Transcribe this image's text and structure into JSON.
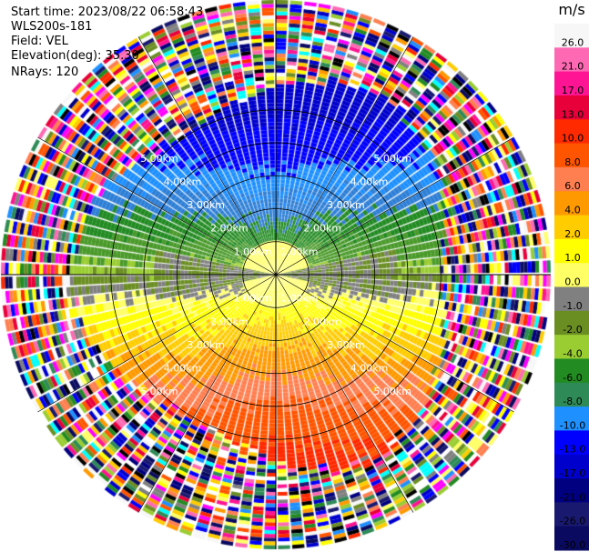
{
  "header": {
    "start_time": "Start time: 2023/08/22 06:58:43",
    "instrument": "WLS200s-181",
    "field": "Field: VEL",
    "elevation": "Elevation(deg): 35.30",
    "nrays": "NRays: 120"
  },
  "chart_data": {
    "type": "heatmap",
    "projection": "polar-ppi",
    "field": "VEL",
    "units": "m/s",
    "n_rays": 120,
    "ring_labels": [
      "1.00km",
      "2.00km",
      "3.00km",
      "4.00km",
      "5.00km"
    ],
    "ring_ranges_km": [
      1,
      2,
      3,
      4,
      5
    ],
    "max_range_km": 5.0,
    "clean_data_range_km": 3.3,
    "colorbar": {
      "title": "m/s",
      "ticks": [
        "26.0",
        "21.0",
        "17.0",
        "13.0",
        "10.0",
        "8.0",
        "6.0",
        "4.0",
        "2.0",
        "1.0",
        "0.0",
        "-1.0",
        "-2.0",
        "-4.0",
        "-6.0",
        "-8.0",
        "-10.0",
        "-13.0",
        "-17.0",
        "-21.0",
        "-26.0",
        "-30.0"
      ],
      "colors": [
        "#f7f7f7",
        "#ff69b4",
        "#ff1493",
        "#e8003a",
        "#ff2a00",
        "#ff5500",
        "#ff7f50",
        "#ff9900",
        "#ffcc00",
        "#ffff00",
        "#ffff66",
        "#808080",
        "#6b8e23",
        "#9acd32",
        "#228b22",
        "#2e8b57",
        "#1e90ff",
        "#0000ff",
        "#0000cd",
        "#000080",
        "#191970",
        "#0a0a60"
      ]
    },
    "wind_pattern": {
      "toward_radar_sector": "south",
      "away_radar_sector": "north"
    }
  }
}
